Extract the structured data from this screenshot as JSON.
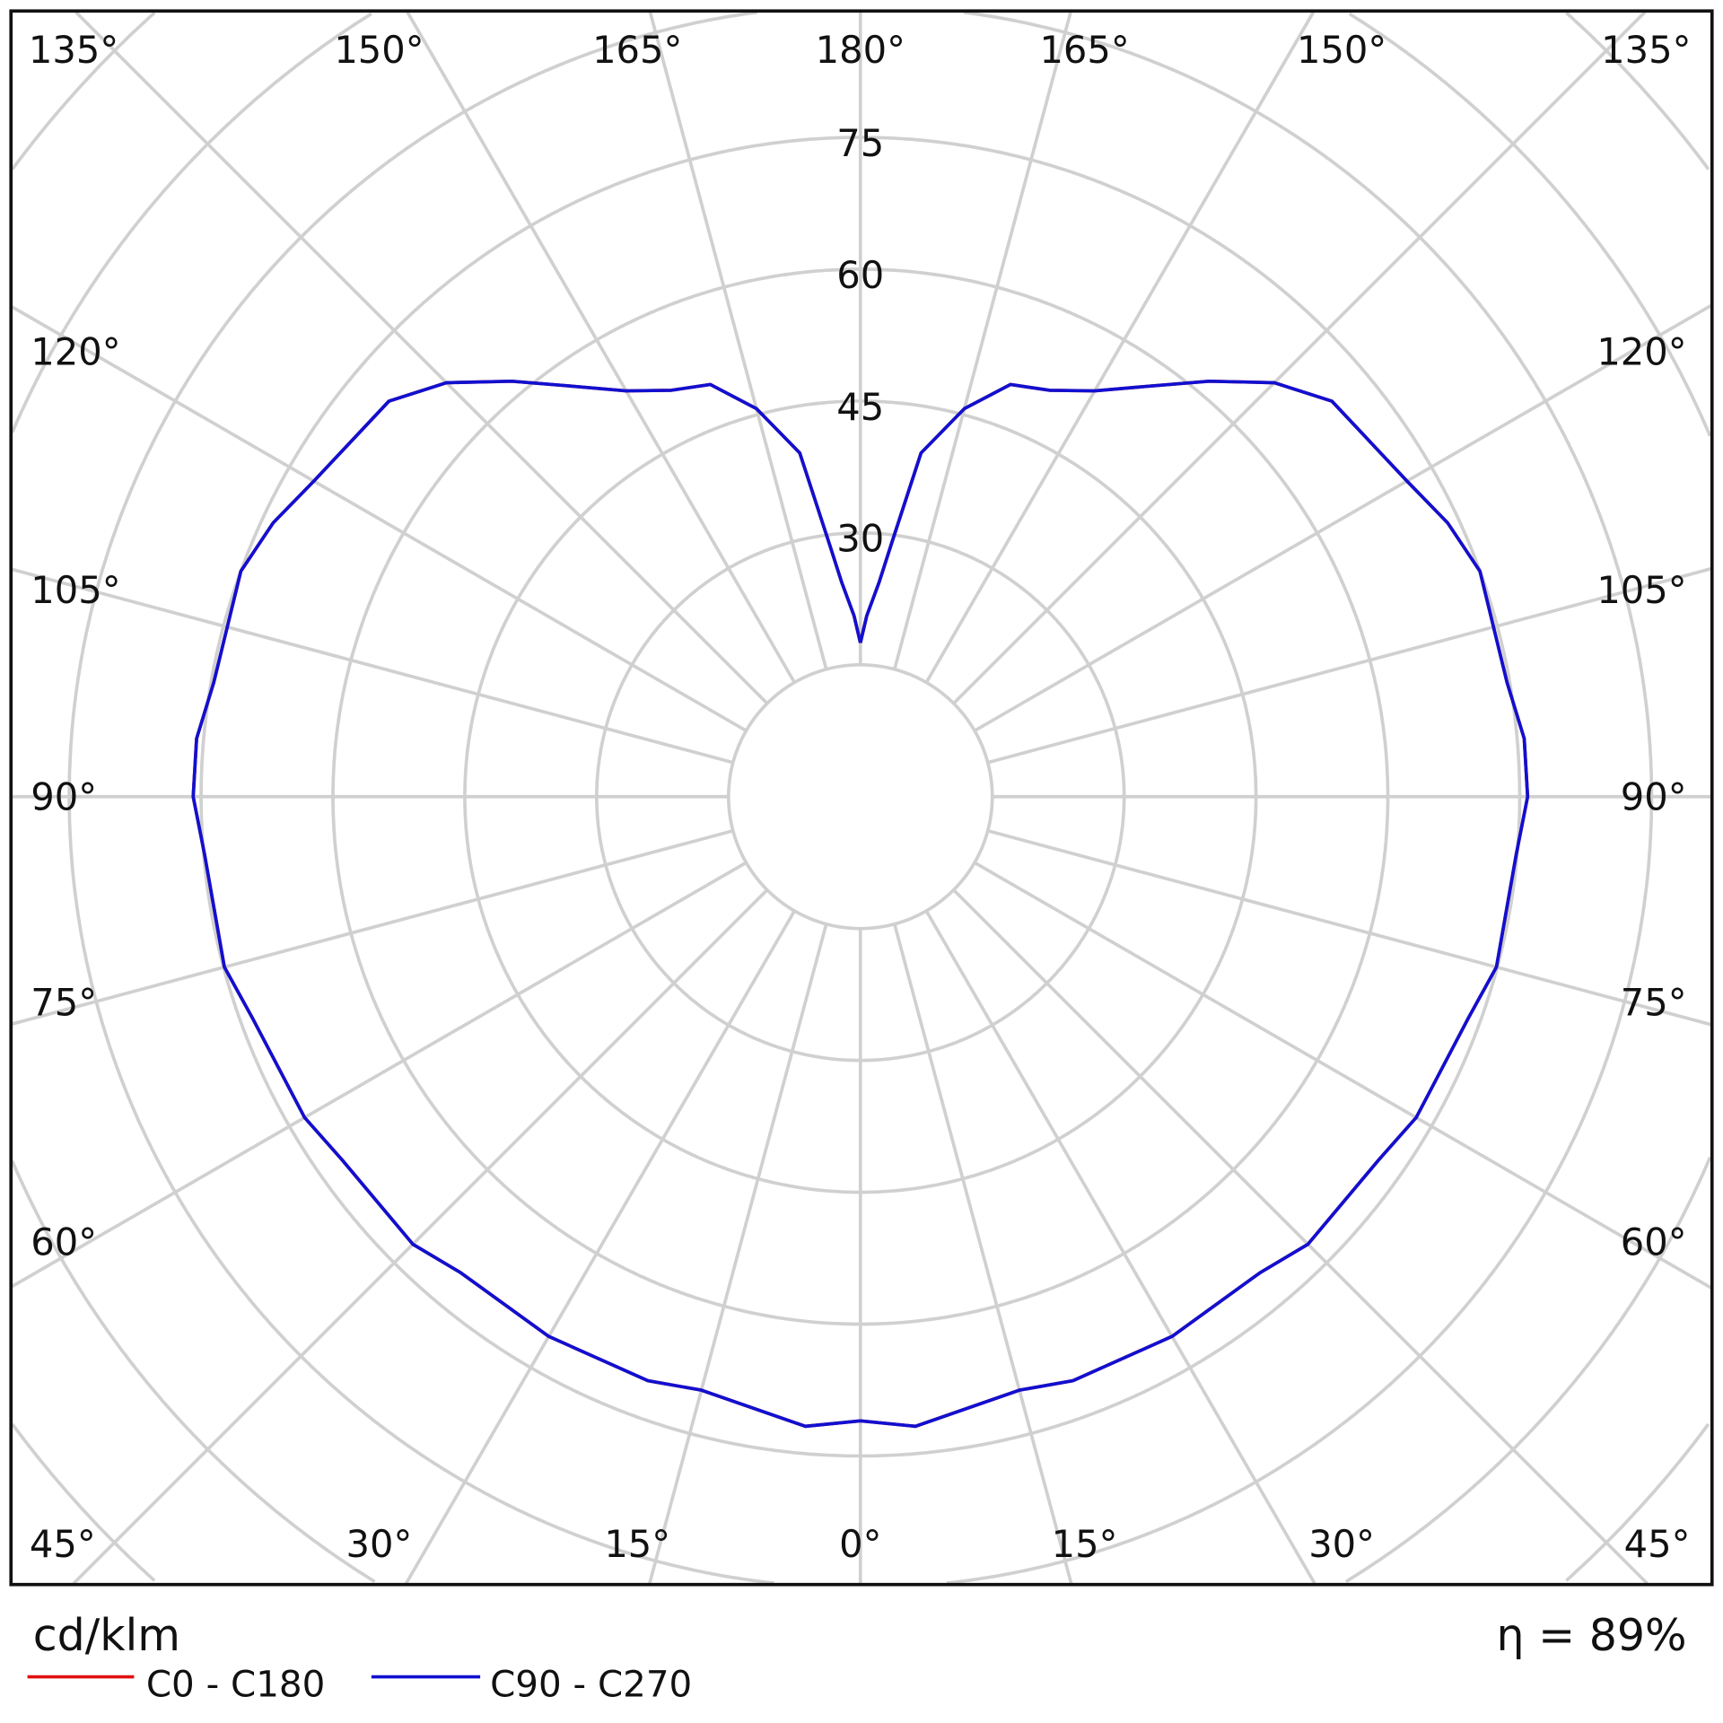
{
  "chart_data": {
    "type": "polar",
    "unit_label": "cd/klm",
    "efficiency_label": "η = 89%",
    "radial_ticks": [
      "30",
      "45",
      "60",
      "75"
    ],
    "radial_tick_values": [
      30,
      45,
      60,
      75
    ],
    "ring_step": 15,
    "grid": true,
    "angle_step_deg": 15,
    "angle_labels": {
      "top": [
        "135°",
        "150°",
        "165°",
        "180°",
        "165°",
        "150°",
        "135°"
      ],
      "left": [
        "120°",
        "105°",
        "90°",
        "75°",
        "60°"
      ],
      "right": [
        "120°",
        "105°",
        "90°",
        "75°",
        "60°"
      ],
      "bottom": [
        "45°",
        "30°",
        "15°",
        "0°",
        "15°",
        "30°",
        "45°"
      ]
    },
    "legend_placement": "bottom-left",
    "series": [
      {
        "name": "C0 - C180",
        "color": "#e01010",
        "angles_deg": [
          0,
          5,
          15,
          20,
          30,
          40,
          45,
          55,
          60,
          70,
          75,
          85,
          90,
          95,
          100,
          110,
          115,
          120,
          130,
          135,
          140,
          145,
          150,
          155,
          160,
          165,
          170,
          173,
          175,
          178,
          180
        ],
        "values": [
          71,
          71.9,
          69.9,
          70.7,
          70.9,
          70.7,
          72,
          72,
          73,
          73.6,
          74.9,
          74.9,
          75.9,
          75.8,
          74.7,
          75,
          73.7,
          71.8,
          70,
          66.6,
          61.7,
          57,
          53.3,
          51,
          49.9,
          45.7,
          39.7,
          29,
          24.5,
          20.6,
          17.5
        ]
      },
      {
        "name": "C90 - C270",
        "color": "#1010d0",
        "angles_deg": [
          0,
          5,
          15,
          20,
          30,
          40,
          45,
          55,
          60,
          70,
          75,
          85,
          90,
          95,
          100,
          110,
          115,
          120,
          130,
          135,
          140,
          145,
          150,
          155,
          160,
          165,
          170,
          173,
          175,
          178,
          180
        ],
        "values": [
          71,
          71.9,
          69.9,
          70.7,
          70.9,
          70.7,
          72,
          72,
          73,
          73.6,
          74.9,
          74.9,
          75.9,
          75.8,
          74.7,
          75,
          73.7,
          71.8,
          70,
          66.6,
          61.7,
          57,
          53.3,
          51,
          49.9,
          45.7,
          39.7,
          29,
          24.5,
          20.6,
          17.5
        ]
      }
    ]
  }
}
